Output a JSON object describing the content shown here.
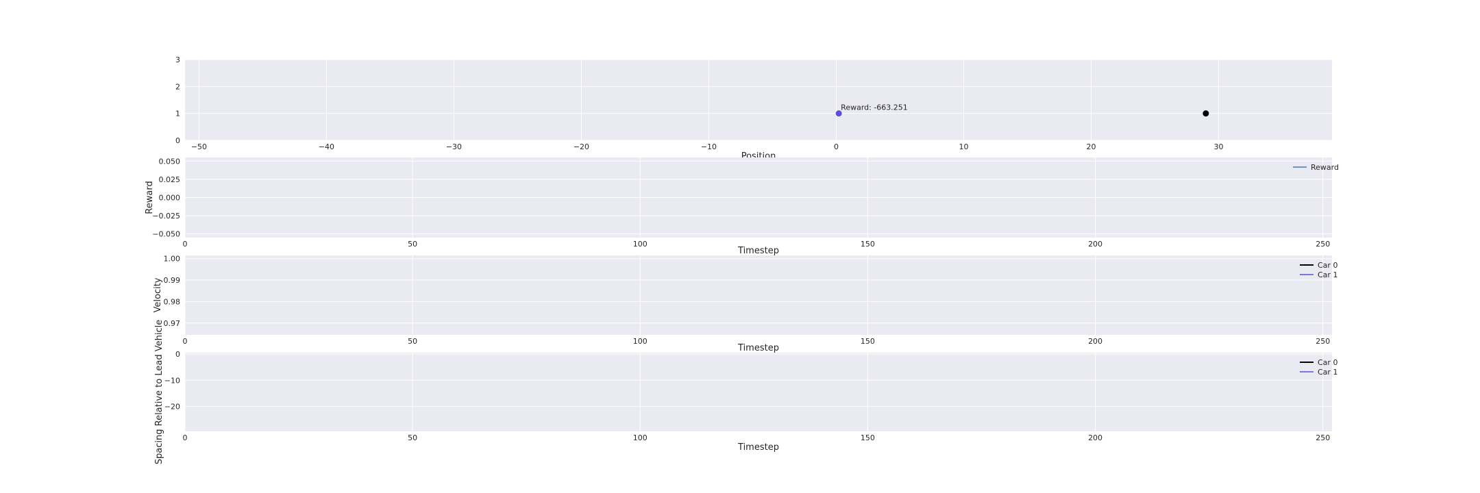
{
  "style": {
    "panel_bg": "#eaeaf2",
    "grid_color": "#ffffff",
    "text_color": "#262626"
  },
  "chart_data": [
    {
      "id": "position",
      "type": "scatter",
      "xlabel": "Position",
      "ylabel": "",
      "xlim": [
        -51.1,
        38.9
      ],
      "ylim": [
        0,
        3
      ],
      "xticks": [
        -50,
        -40,
        -30,
        -20,
        -10,
        0,
        10,
        20,
        30
      ],
      "xtick_labels": [
        "−50",
        "−40",
        "−30",
        "−20",
        "−10",
        "0",
        "10",
        "20",
        "30"
      ],
      "yticks": [
        0,
        1,
        2,
        3
      ],
      "ytick_labels": [
        "0",
        "1",
        "2",
        "3"
      ],
      "grid": true,
      "points": [
        {
          "x": 0.2,
          "y": 1,
          "color": "#5b4fd6"
        },
        {
          "x": 29.0,
          "y": 1,
          "color": "#000000"
        }
      ],
      "annotations": [
        {
          "x": 0.2,
          "y": 1,
          "text": "Reward: -663.251"
        }
      ]
    },
    {
      "id": "reward",
      "type": "line",
      "xlabel": "Timestep",
      "ylabel": "Reward",
      "xlim": [
        0,
        252
      ],
      "ylim": [
        -0.055,
        0.055
      ],
      "xticks": [
        0,
        50,
        100,
        150,
        200,
        250
      ],
      "xtick_labels": [
        "0",
        "50",
        "100",
        "150",
        "200",
        "250"
      ],
      "yticks": [
        0.05,
        0.025,
        0,
        -0.025,
        -0.05
      ],
      "ytick_labels": [
        "0.050",
        "0.025",
        "0.000",
        "−0.025",
        "−0.050"
      ],
      "grid": true,
      "legend": "top-right",
      "series": [
        {
          "name": "Reward",
          "color": "#4c72b0",
          "values": []
        }
      ]
    },
    {
      "id": "velocity",
      "type": "line",
      "xlabel": "Timestep",
      "ylabel": "Velocity",
      "xlim": [
        0,
        252
      ],
      "ylim": [
        0.9645,
        1.0015
      ],
      "xticks": [
        0,
        50,
        100,
        150,
        200,
        250
      ],
      "xtick_labels": [
        "0",
        "50",
        "100",
        "150",
        "200",
        "250"
      ],
      "yticks": [
        1.0,
        0.99,
        0.98,
        0.97
      ],
      "ytick_labels": [
        "1.00",
        "0.99",
        "0.98",
        "0.97"
      ],
      "grid": true,
      "legend": "top-right",
      "series": [
        {
          "name": "Car 0",
          "color": "#000000",
          "values": []
        },
        {
          "name": "Car 1",
          "color": "#5b4fd6",
          "values": []
        }
      ]
    },
    {
      "id": "spacing",
      "type": "line",
      "xlabel": "Timestep",
      "ylabel": "Spacing Relative to Lead Vehicle",
      "xlim": [
        0,
        252
      ],
      "ylim": [
        -29.5,
        0.5
      ],
      "xticks": [
        0,
        50,
        100,
        150,
        200,
        250
      ],
      "xtick_labels": [
        "0",
        "50",
        "100",
        "150",
        "200",
        "250"
      ],
      "yticks": [
        0,
        -10,
        -20
      ],
      "ytick_labels": [
        "0",
        "−10",
        "−20"
      ],
      "grid": true,
      "legend": "top-right",
      "series": [
        {
          "name": "Car 0",
          "color": "#000000",
          "values": []
        },
        {
          "name": "Car 1",
          "color": "#5b4fd6",
          "values": []
        }
      ]
    }
  ]
}
